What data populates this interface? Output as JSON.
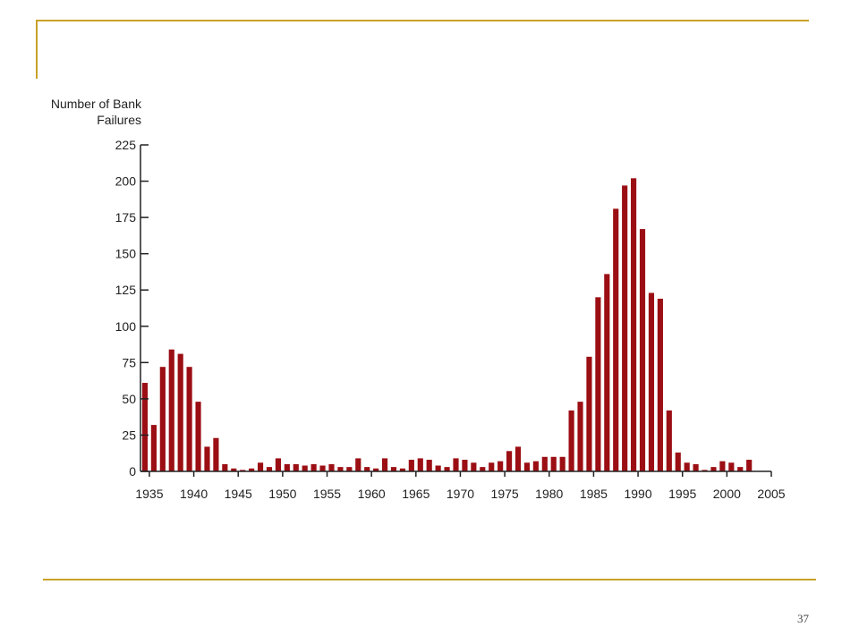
{
  "slide": {
    "page_number": "37"
  },
  "colors": {
    "bar": "#9b0f14",
    "frame": "#c9a227",
    "axis": "#222222"
  },
  "chart_data": {
    "type": "bar",
    "title": "",
    "ylabel_line1": "Number of Bank",
    "ylabel_line2": "Failures",
    "xlabel": "",
    "ylim": [
      0,
      225
    ],
    "xlim": [
      1934,
      2005
    ],
    "yticks": [
      0,
      25,
      50,
      75,
      100,
      125,
      150,
      175,
      200,
      225
    ],
    "xticks": [
      1935,
      1940,
      1945,
      1950,
      1955,
      1960,
      1965,
      1970,
      1975,
      1980,
      1985,
      1990,
      1995,
      2000,
      2005
    ],
    "grid": false,
    "legend": "none",
    "categories": [
      1934,
      1935,
      1936,
      1937,
      1938,
      1939,
      1940,
      1941,
      1942,
      1943,
      1944,
      1945,
      1946,
      1947,
      1948,
      1949,
      1950,
      1951,
      1952,
      1953,
      1954,
      1955,
      1956,
      1957,
      1958,
      1959,
      1960,
      1961,
      1962,
      1963,
      1964,
      1965,
      1966,
      1967,
      1968,
      1969,
      1970,
      1971,
      1972,
      1973,
      1974,
      1975,
      1976,
      1977,
      1978,
      1979,
      1980,
      1981,
      1982,
      1983,
      1984,
      1985,
      1986,
      1987,
      1988,
      1989,
      1990,
      1991,
      1992,
      1993,
      1994,
      1995,
      1996,
      1997,
      1998,
      1999,
      2000,
      2001,
      2002
    ],
    "values": [
      61,
      32,
      72,
      84,
      81,
      72,
      48,
      17,
      23,
      5,
      2,
      1,
      2,
      6,
      3,
      9,
      5,
      5,
      4,
      5,
      4,
      5,
      3,
      3,
      9,
      3,
      2,
      9,
      3,
      2,
      8,
      9,
      8,
      4,
      3,
      9,
      8,
      6,
      3,
      6,
      7,
      14,
      17,
      6,
      7,
      10,
      10,
      10,
      42,
      48,
      79,
      120,
      136,
      181,
      197,
      202,
      167,
      123,
      119,
      42,
      13,
      6,
      5,
      1,
      3,
      7,
      6,
      3,
      8
    ]
  }
}
